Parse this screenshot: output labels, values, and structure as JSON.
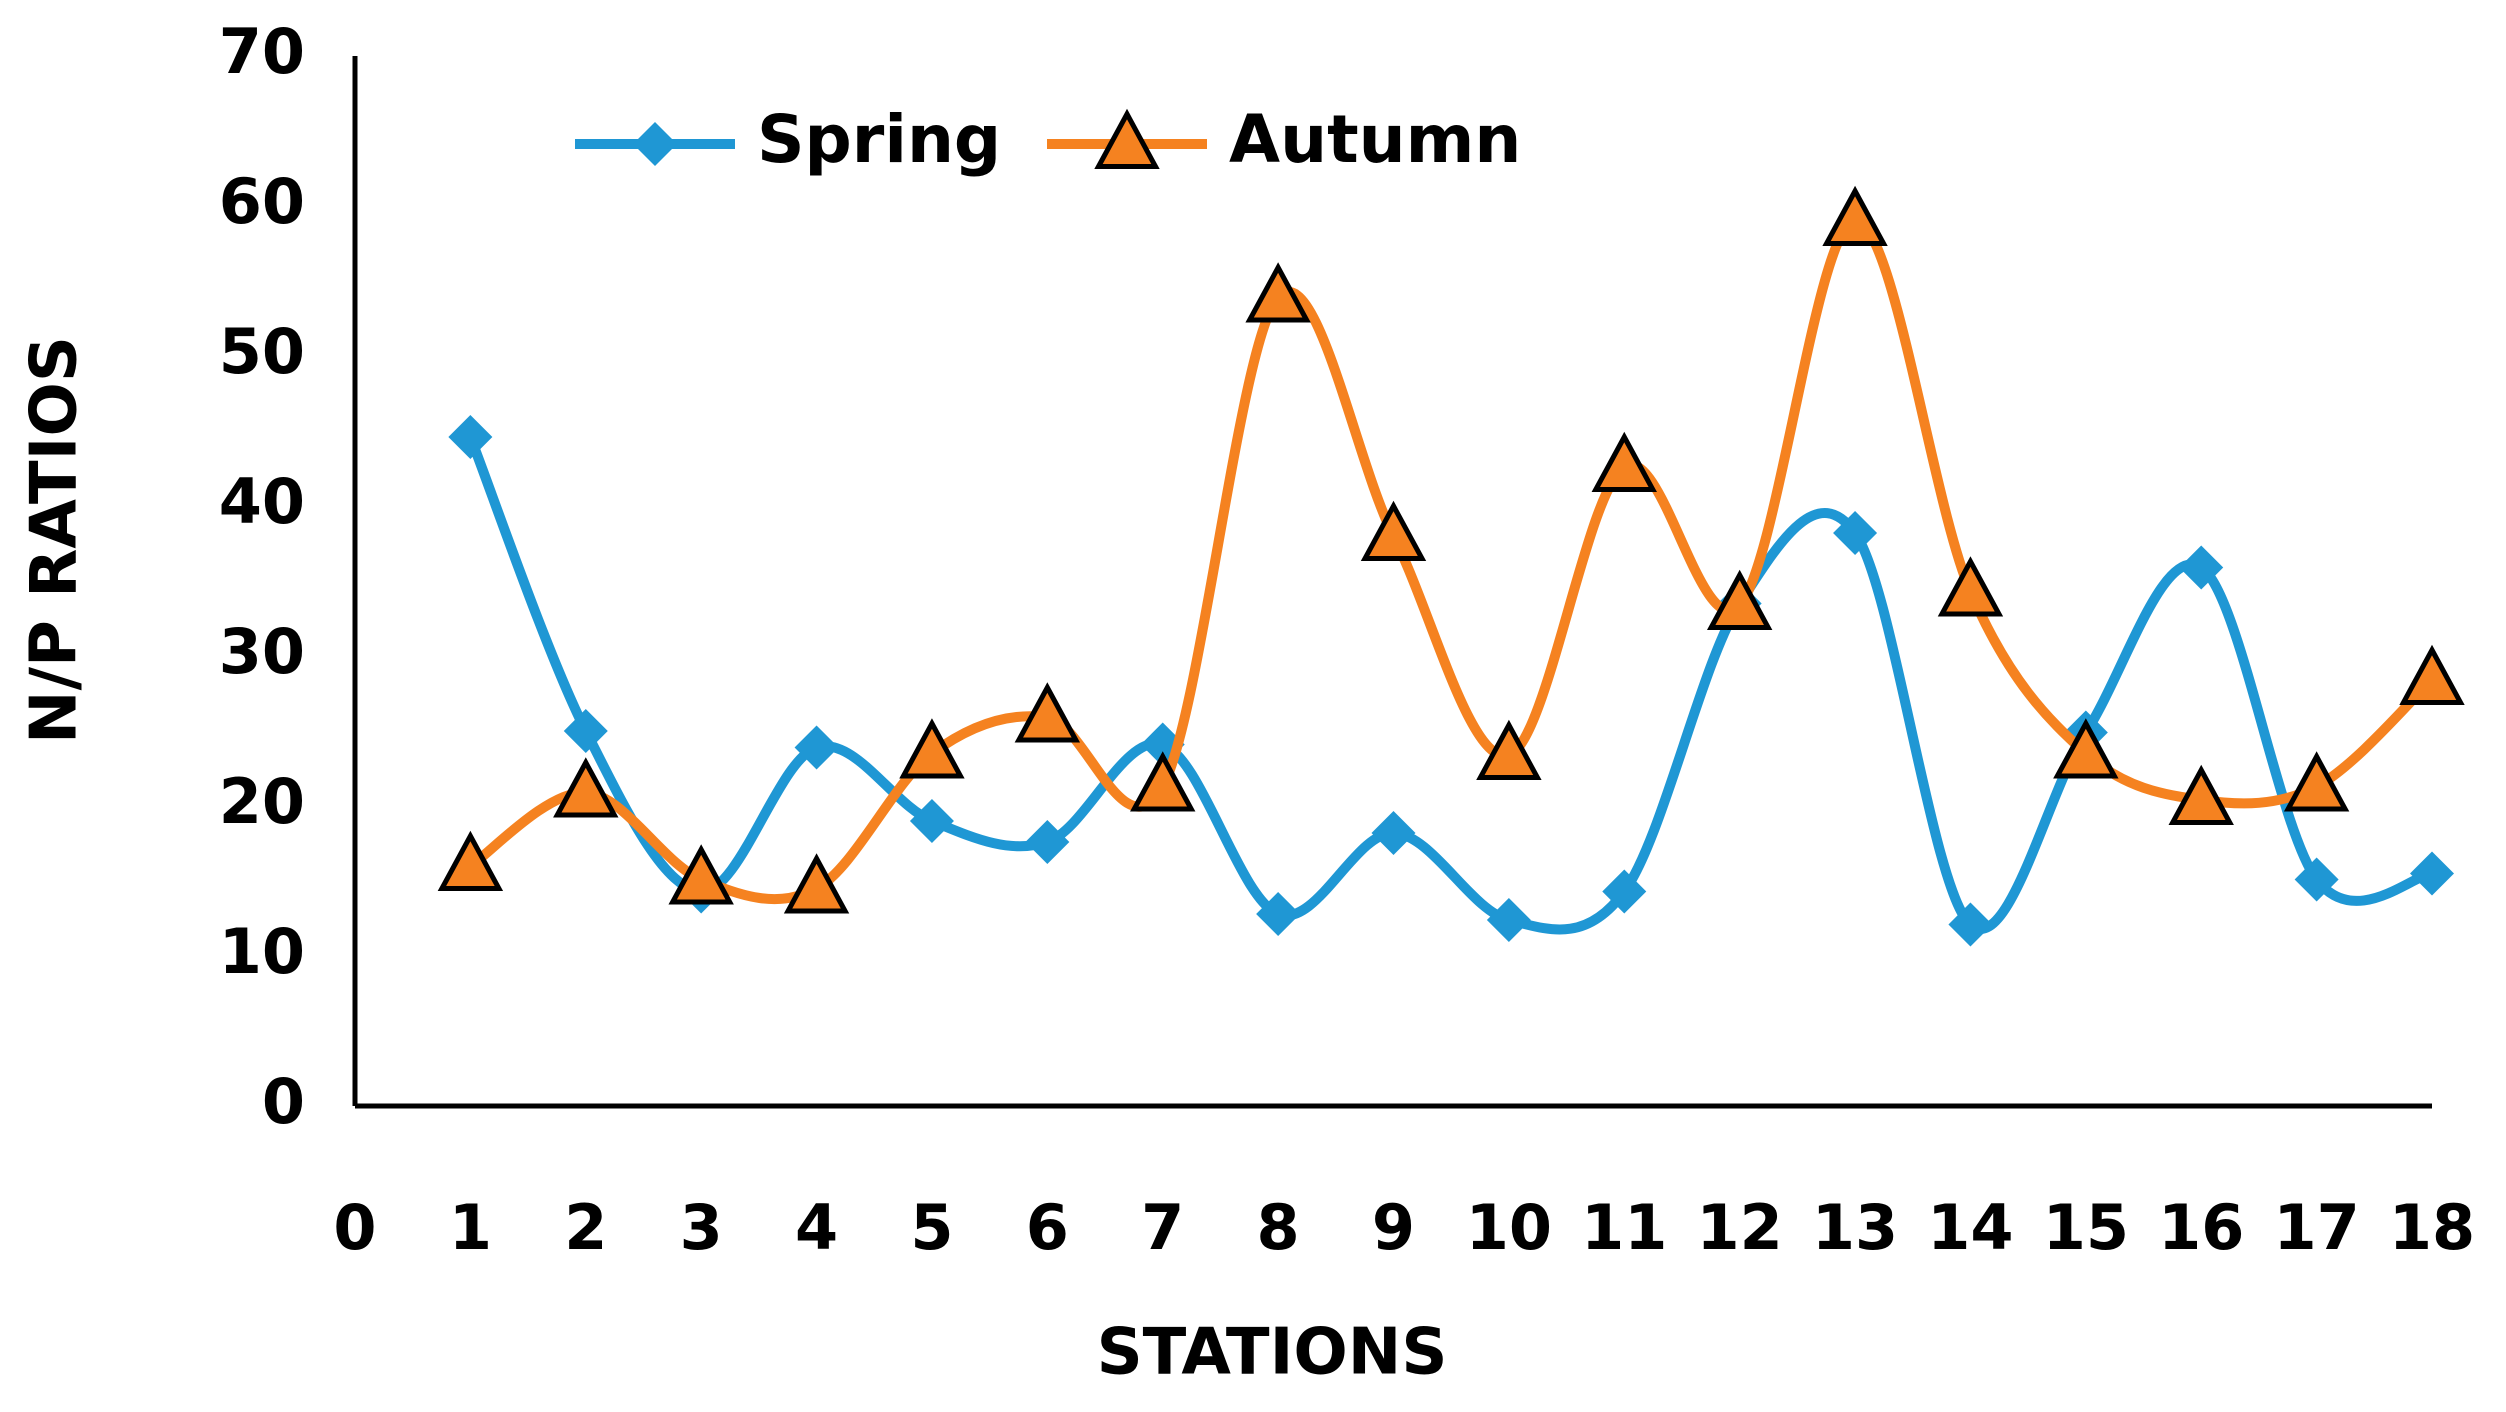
{
  "chart_data": {
    "type": "line",
    "y_label": "N/P RATIOS",
    "x_label": "STATIONS",
    "x": [
      1,
      2,
      3,
      4,
      5,
      6,
      7,
      8,
      9,
      10,
      11,
      12,
      13,
      14,
      15,
      16,
      17,
      18
    ],
    "series": [
      {
        "name": "Spring",
        "color": "#1f97d4",
        "marker": "diamond",
        "values": [
          44.6,
          25.0,
          14.3,
          23.9,
          19.0,
          17.6,
          24.1,
          12.8,
          18.2,
          12.4,
          14.3,
          33.5,
          38.2,
          12.1,
          24.9,
          35.9,
          15.1,
          15.5
        ]
      },
      {
        "name": "Autumn",
        "color": "#f58220",
        "marker": "triangle",
        "values": [
          16.0,
          20.9,
          15.1,
          14.5,
          23.5,
          25.9,
          21.3,
          53.9,
          38.0,
          23.4,
          42.6,
          33.4,
          59.0,
          34.3,
          23.5,
          20.4,
          21.3,
          28.4
        ]
      }
    ],
    "xlim": [
      0,
      18
    ],
    "xticks": [
      0,
      1,
      2,
      3,
      4,
      5,
      6,
      7,
      8,
      9,
      10,
      11,
      12,
      13,
      14,
      15,
      16,
      17,
      18
    ],
    "ylim": [
      0,
      70
    ],
    "yticks": [
      0,
      10,
      20,
      30,
      40,
      50,
      60,
      70
    ],
    "grid": false,
    "smooth": true,
    "legend": "top"
  }
}
